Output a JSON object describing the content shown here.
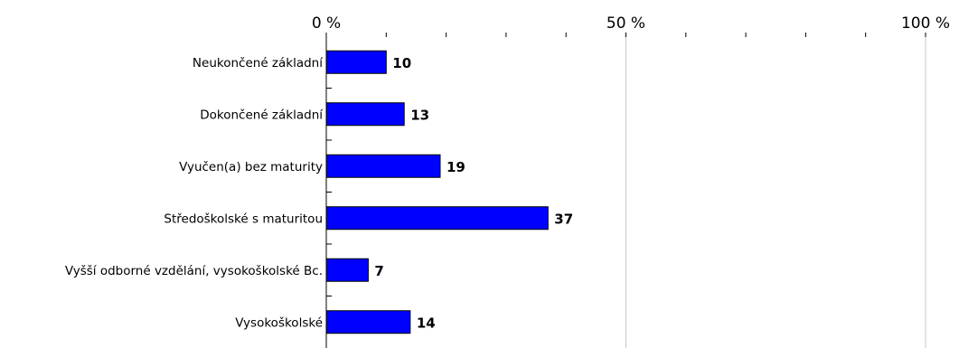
{
  "chart_data": {
    "type": "bar",
    "orientation": "horizontal",
    "categories": [
      "Neukončené základní",
      "Dokončené základní",
      "Vyučen(a) bez maturity",
      "Středoškolské s maturitou",
      "Vyšší odborné vzdělání, vysokoškolské Bc.",
      "Vysokoškolské"
    ],
    "values": [
      10,
      13,
      19,
      37,
      7,
      14
    ],
    "xlim": [
      0,
      100
    ],
    "x_ticks": [
      0,
      50,
      100
    ],
    "x_tick_labels": [
      "0 %",
      "50 %",
      "100 %"
    ],
    "x_axis_position": "top",
    "grid": true,
    "bar_color": "#0000FF",
    "bar_edge_color": "#000000",
    "gridline_color": "#C8C8C8",
    "title": "",
    "xlabel": "",
    "ylabel": ""
  }
}
